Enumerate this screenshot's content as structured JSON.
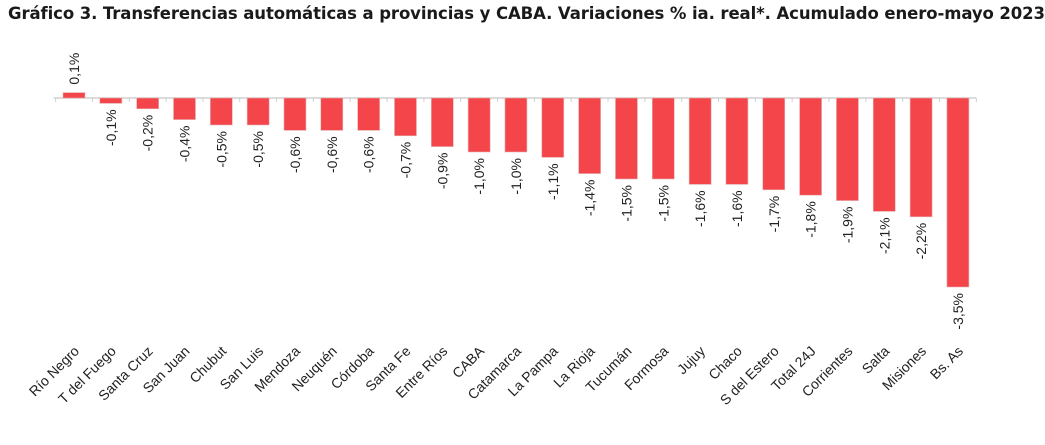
{
  "chart_data": {
    "type": "bar",
    "title": "Gráfico 3. Transferencias automáticas a provincias y CABA. Variaciones % ia. real*. Acumulado enero-mayo 2023",
    "xlabel": "",
    "ylabel": "",
    "ylim": [
      -3.5,
      0.1
    ],
    "grid": false,
    "legend": "none",
    "bar_color": "#F4464A",
    "categories": [
      "Río Negro",
      "T del Fuego",
      "Santa Cruz",
      "San Juan",
      "Chubut",
      "San Luis",
      "Mendoza",
      "Neuquén",
      "Córdoba",
      "Santa Fe",
      "Entre Ríos",
      "CABA",
      "Catamarca",
      "La Pampa",
      "La Rioja",
      "Tucumán",
      "Formosa",
      "Jujuy",
      "Chaco",
      "S del Estero",
      "Total 24J",
      "Corrientes",
      "Salta",
      "Misiones",
      "Bs. As"
    ],
    "values": [
      0.1,
      -0.1,
      -0.2,
      -0.4,
      -0.5,
      -0.5,
      -0.6,
      -0.6,
      -0.6,
      -0.7,
      -0.9,
      -1.0,
      -1.0,
      -1.1,
      -1.4,
      -1.5,
      -1.5,
      -1.6,
      -1.6,
      -1.7,
      -1.8,
      -1.9,
      -2.1,
      -2.2,
      -3.5
    ],
    "labels": [
      "0,1%",
      "-0,1%",
      "-0,2%",
      "-0,4%",
      "-0,5%",
      "-0,5%",
      "-0,6%",
      "-0,6%",
      "-0,6%",
      "-0,7%",
      "-0,9%",
      "-1,0%",
      "-1,0%",
      "-1,1%",
      "-1,4%",
      "-1,5%",
      "-1,5%",
      "-1,6%",
      "-1,6%",
      "-1,7%",
      "-1,8%",
      "-1,9%",
      "-2,1%",
      "-2,2%",
      "-3,5%"
    ]
  }
}
